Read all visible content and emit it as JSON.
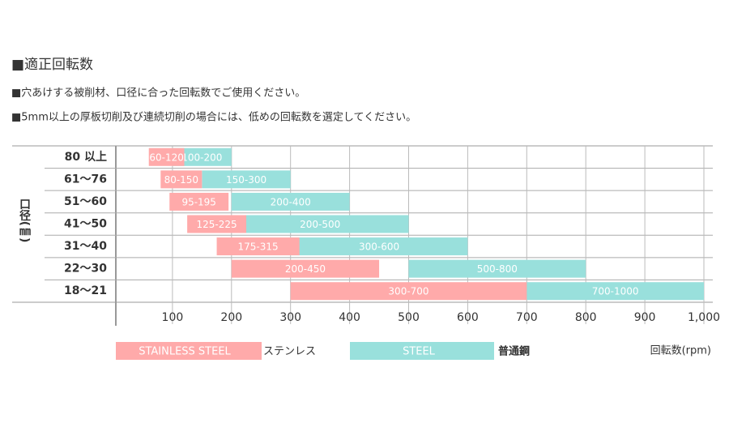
{
  "chart_data": {
    "type": "range-bar",
    "title": "■適正回転数",
    "notes": [
      "■穴あけする被削材、口径に合った回転数でご使用ください。",
      "■5mm以上の厚板切削及び連続切削の場合には、低めの回転数を選定してください。"
    ],
    "y_label": "口径(㎜)",
    "x_label": "回転数(rpm)",
    "categories": [
      "80 以上",
      "61～76",
      "51～60",
      "41～50",
      "31～40",
      "22～30",
      "18～21"
    ],
    "series": [
      {
        "name": "STAINLESS STEEL",
        "label_ja": "ステンレス",
        "color": "#ffaaaa",
        "low": [
          60,
          80,
          95,
          125,
          175,
          200,
          300
        ],
        "high": [
          120,
          150,
          195,
          225,
          315,
          450,
          700
        ],
        "value_labels": [
          "60-120",
          "80-150",
          "95-195",
          "125-225",
          "175-315",
          "200-450",
          "300-700"
        ]
      },
      {
        "name": "STEEL",
        "label_ja": "普通鋼",
        "color": "#99e0dc",
        "low": [
          100,
          150,
          200,
          200,
          300,
          500,
          700
        ],
        "high": [
          200,
          300,
          400,
          500,
          600,
          800,
          1000
        ],
        "value_labels": [
          "100-200",
          "150-300",
          "200-400",
          "200-500",
          "300-600",
          "500-800",
          "700-1000"
        ]
      }
    ],
    "xlim": [
      0,
      1000
    ],
    "xticks": [
      100,
      200,
      300,
      400,
      500,
      600,
      700,
      800,
      900,
      {
        "value": 1000,
        "label": "1,000"
      }
    ],
    "grid": true
  }
}
